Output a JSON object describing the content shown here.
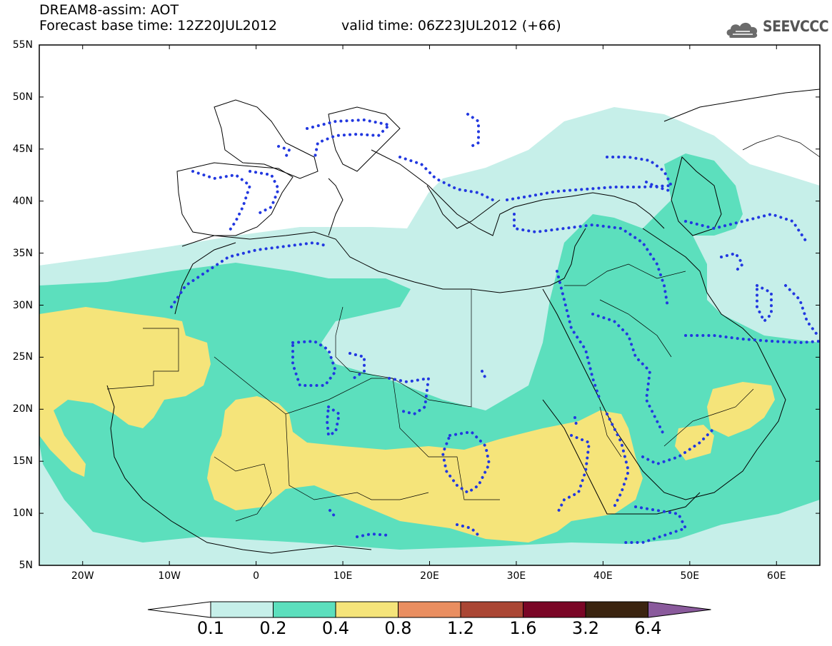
{
  "header": {
    "title": "DREAM8-assim: AOT",
    "base_time": "Forecast base time: 12Z20JUL2012",
    "valid_time": "valid time: 06Z23JUL2012 (+66)"
  },
  "logo": {
    "text": "SEEVCCC",
    "icon": "cloud-icon"
  },
  "axes": {
    "lat_labels": [
      "55N",
      "50N",
      "45N",
      "40N",
      "35N",
      "30N",
      "25N",
      "20N",
      "15N",
      "10N",
      "5N"
    ],
    "lon_labels": [
      "20W",
      "10W",
      "0",
      "10E",
      "20E",
      "30E",
      "40E",
      "50E",
      "60E"
    ],
    "lon_range": [
      -25,
      65
    ],
    "lat_range": [
      5,
      55
    ]
  },
  "legend": {
    "levels": [
      "0.1",
      "0.2",
      "0.4",
      "0.8",
      "1.2",
      "1.6",
      "3.2",
      "6.4"
    ],
    "colors": [
      "#ffffff",
      "#c6efe9",
      "#5cdfbd",
      "#f5e47a",
      "#e98e60",
      "#aa4634",
      "#7a0626",
      "#3b2410",
      "#8a5a9c"
    ]
  },
  "map": {
    "fill_colors": {
      "low": "#c6efe9",
      "mid": "#5cdfbd",
      "high": "#f5e47a"
    },
    "observation_dots_color": "#2238e0",
    "coast_color": "#000000"
  }
}
